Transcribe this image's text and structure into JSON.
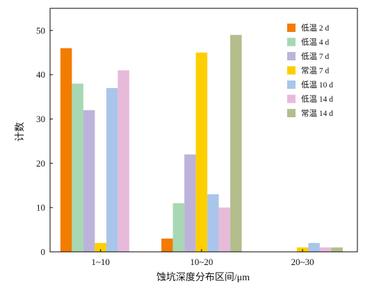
{
  "chart_data": {
    "type": "bar",
    "categories": [
      "1~10",
      "10~20",
      "20~30"
    ],
    "series": [
      {
        "name": "低温 2 d",
        "color": "#F27C00",
        "values": [
          46,
          3,
          0
        ]
      },
      {
        "name": "低温 4 d",
        "color": "#A7D8B3",
        "values": [
          38,
          11,
          0
        ]
      },
      {
        "name": "低温 7 d",
        "color": "#BDB3DA",
        "values": [
          32,
          22,
          0
        ]
      },
      {
        "name": "常温 7 d",
        "color": "#FDCF00",
        "values": [
          2,
          45,
          1
        ]
      },
      {
        "name": "低温 10 d",
        "color": "#A9C5EA",
        "values": [
          37,
          13,
          2
        ]
      },
      {
        "name": "低温 14 d",
        "color": "#E8BADA",
        "values": [
          41,
          10,
          1
        ]
      },
      {
        "name": "常温 14 d",
        "color": "#B3BE8C",
        "values": [
          0,
          49,
          1
        ]
      }
    ],
    "title": "",
    "xlabel": "蚀坑深度分布区间/μm",
    "ylabel": "计数",
    "ylim": [
      0,
      55
    ],
    "yticks": [
      0,
      10,
      20,
      30,
      40,
      50
    ],
    "grid": false,
    "legend": "top-right"
  }
}
